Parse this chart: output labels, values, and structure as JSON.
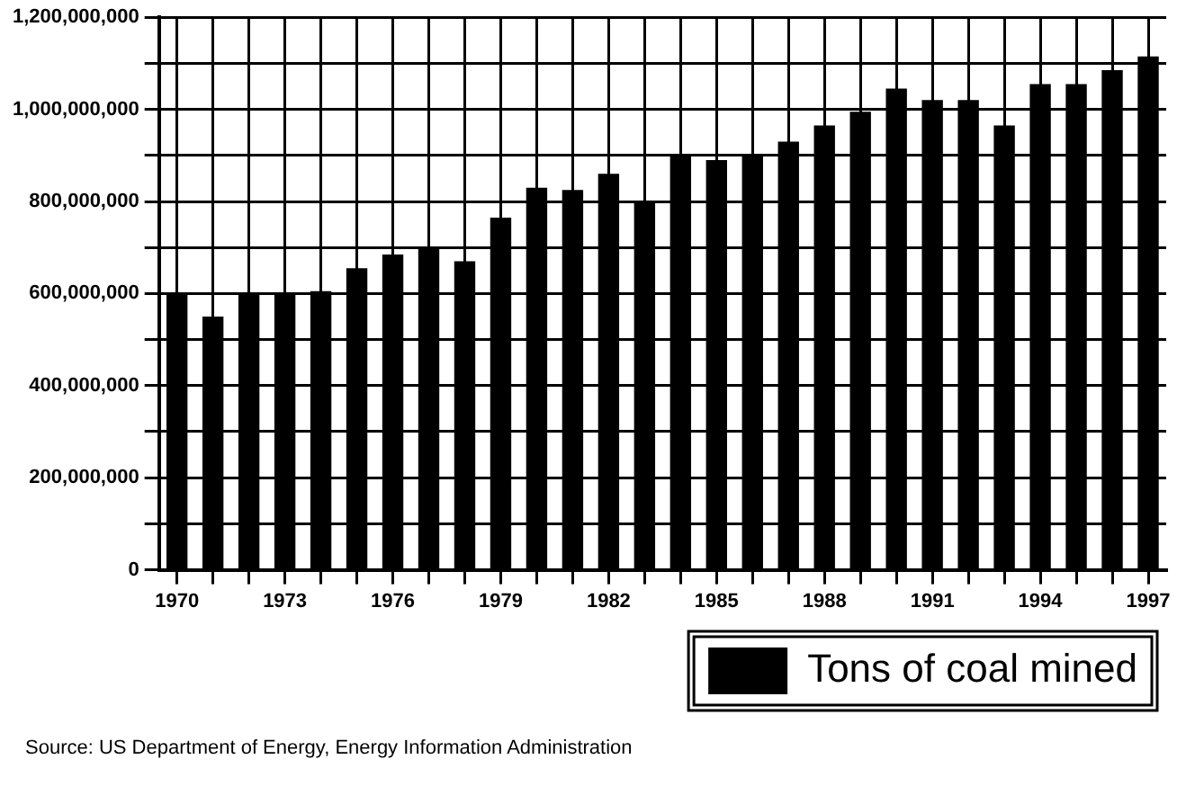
{
  "chart_data": {
    "type": "bar",
    "categories": [
      "1970",
      null,
      null,
      "1973",
      null,
      null,
      "1976",
      null,
      null,
      "1979",
      null,
      null,
      "1982",
      null,
      null,
      "1985",
      null,
      null,
      "1988",
      null,
      null,
      "1991",
      null,
      null,
      "1994",
      null,
      null,
      "1997"
    ],
    "series": [
      {
        "name": "Tons of coal mined",
        "color": "#000000",
        "values": [
          600000000,
          550000000,
          600000000,
          600000000,
          605000000,
          655000000,
          685000000,
          700000000,
          670000000,
          765000000,
          830000000,
          825000000,
          860000000,
          800000000,
          900000000,
          890000000,
          900000000,
          930000000,
          965000000,
          995000000,
          1045000000,
          1020000000,
          1020000000,
          965000000,
          1055000000,
          1055000000,
          1085000000,
          1115000000
        ]
      }
    ],
    "ylim": [
      0,
      1200000000
    ],
    "yticks": [
      {
        "value": 0,
        "label": "0"
      },
      {
        "value": 100000000,
        "label": null
      },
      {
        "value": 200000000,
        "label": "200,000,000"
      },
      {
        "value": 300000000,
        "label": null
      },
      {
        "value": 400000000,
        "label": "400,000,000"
      },
      {
        "value": 500000000,
        "label": null
      },
      {
        "value": 600000000,
        "label": "600,000,000"
      },
      {
        "value": 700000000,
        "label": null
      },
      {
        "value": 800000000,
        "label": "800,000,000"
      },
      {
        "value": 900000000,
        "label": null
      },
      {
        "value": 1000000000,
        "label": "1,000,000,000"
      },
      {
        "value": 1100000000,
        "label": null
      },
      {
        "value": 1200000000,
        "label": "1,200,000,000"
      }
    ],
    "grid": true,
    "legend": "bottom right",
    "annotations": [
      "Source:  US Department of Energy, Energy Information Administration"
    ]
  }
}
